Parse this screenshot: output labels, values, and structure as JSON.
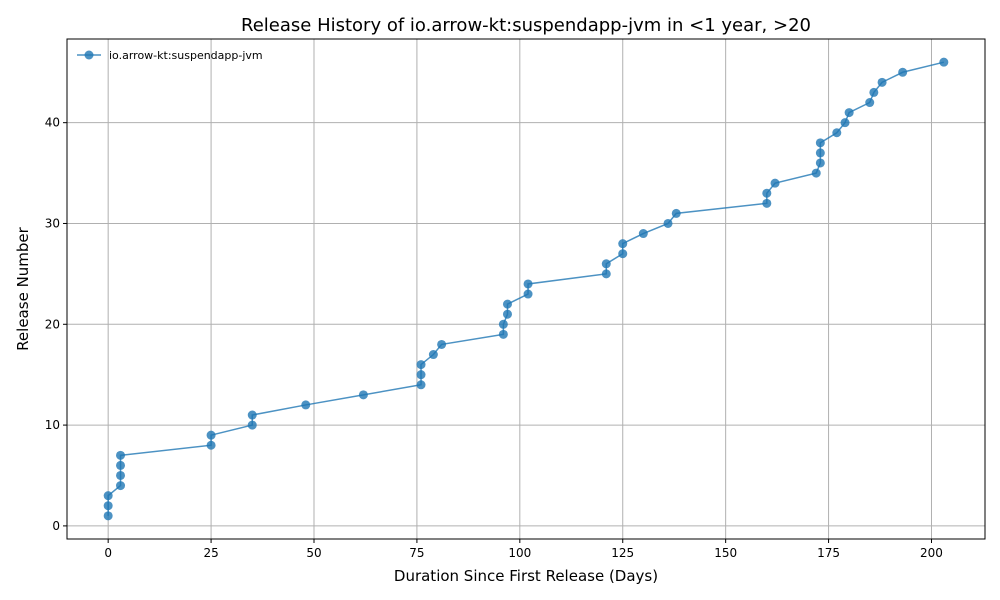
{
  "chart_data": {
    "type": "line",
    "title": "Release History of io.arrow-kt:suspendapp-jvm in <1 year, >20",
    "xlabel": "Duration Since First Release (Days)",
    "ylabel": "Release Number",
    "xlim": [
      -10,
      213
    ],
    "ylim": [
      -1.3,
      48.3
    ],
    "xticks": [
      0,
      25,
      50,
      75,
      100,
      125,
      150,
      175,
      200
    ],
    "yticks": [
      0,
      10,
      20,
      30,
      40
    ],
    "grid": true,
    "legend_position": "top-left",
    "series": [
      {
        "name": "io.arrow-kt:suspendapp-jvm",
        "color": "#1f77b4",
        "marker": "circle",
        "x": [
          0,
          0,
          0,
          3,
          3,
          3,
          3,
          25,
          25,
          35,
          35,
          48,
          62,
          76,
          76,
          76,
          79,
          81,
          96,
          96,
          97,
          97,
          102,
          102,
          121,
          121,
          125,
          125,
          130,
          136,
          138,
          160,
          160,
          162,
          172,
          173,
          173,
          173,
          177,
          179,
          180,
          185,
          186,
          188,
          193,
          203
        ],
        "y": [
          1,
          2,
          3,
          4,
          5,
          6,
          7,
          8,
          9,
          10,
          11,
          12,
          13,
          14,
          15,
          16,
          17,
          18,
          19,
          20,
          21,
          22,
          23,
          24,
          25,
          26,
          27,
          28,
          29,
          30,
          31,
          32,
          33,
          34,
          35,
          36,
          37,
          38,
          39,
          40,
          41,
          42,
          43,
          44,
          45,
          46
        ]
      }
    ]
  }
}
